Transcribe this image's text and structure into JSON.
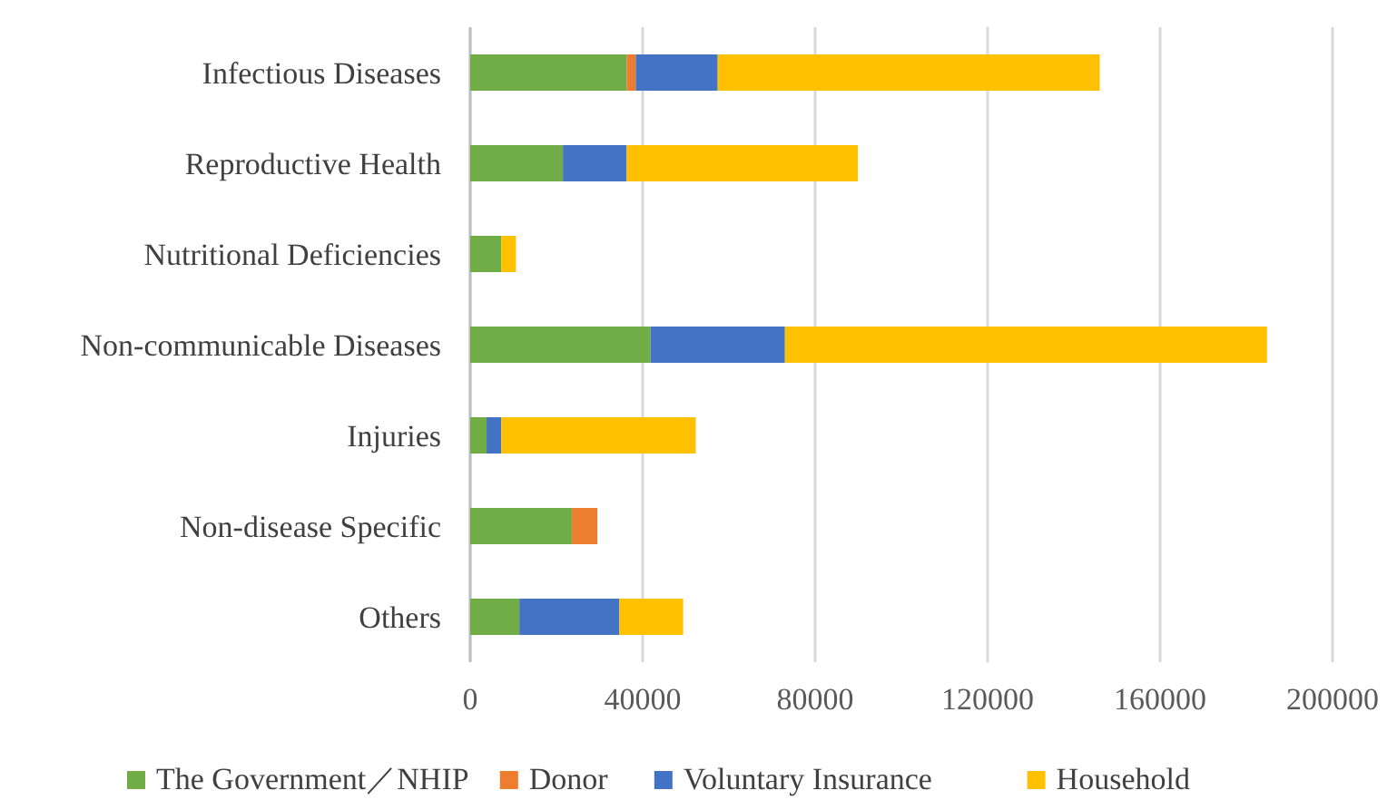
{
  "chart_data": {
    "type": "bar",
    "orientation": "horizontal",
    "stacked": true,
    "categories": [
      "Infectious Diseases",
      "Reproductive Health",
      "Nutritional Deficiencies",
      "Non-communicable Diseases",
      "Injuries",
      "Non-disease Specific",
      "Others"
    ],
    "series": [
      {
        "name": "The Government／NHIP",
        "color": "#70ad47",
        "values": [
          36300,
          21500,
          7200,
          41800,
          3800,
          23600,
          11400
        ]
      },
      {
        "name": "Donor",
        "color": "#ed7d31",
        "values": [
          2100,
          null,
          null,
          null,
          null,
          5900,
          null
        ]
      },
      {
        "name": "Voluntary Insurance",
        "color": "#4472c4",
        "values": [
          19000,
          14800,
          null,
          31200,
          3400,
          null,
          23200
        ]
      },
      {
        "name": "Household",
        "color": "#ffc000",
        "values": [
          88600,
          53600,
          3400,
          111800,
          45100,
          null,
          14800
        ]
      }
    ],
    "xlim": [
      0,
      200000
    ],
    "xticks": [
      0,
      40000,
      80000,
      120000,
      160000,
      200000
    ],
    "grid": "x",
    "legend": "bottom"
  }
}
